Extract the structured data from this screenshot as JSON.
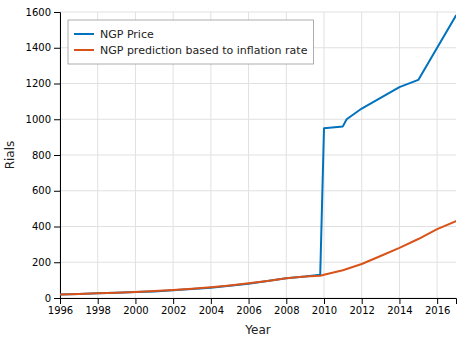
{
  "chart_data": {
    "type": "line",
    "xlabel": "Year",
    "ylabel": "Rials",
    "xlim": [
      1996,
      2017
    ],
    "ylim": [
      0,
      1600
    ],
    "xticks": [
      1996,
      1998,
      2000,
      2002,
      2004,
      2006,
      2008,
      2010,
      2012,
      2014,
      2016
    ],
    "yticks": [
      0,
      200,
      400,
      600,
      800,
      1000,
      1200,
      1400,
      1600
    ],
    "grid": true,
    "legend": "upper left",
    "series": [
      {
        "name": "NGP Price",
        "color": "#0072bd",
        "x": [
          1996,
          1997,
          1998,
          1999,
          2000,
          2001,
          2002,
          2003,
          2004,
          2005,
          2006,
          2007,
          2008,
          2009,
          2009.8,
          2010.0,
          2011.0,
          2011.2,
          2012,
          2013,
          2014,
          2015,
          2016,
          2017
        ],
        "values": [
          20,
          23,
          26,
          29,
          33,
          37,
          43,
          50,
          58,
          68,
          80,
          95,
          110,
          120,
          130,
          950,
          960,
          1000,
          1060,
          1120,
          1180,
          1220,
          1400,
          1580
        ]
      },
      {
        "name": "NGP prediction based to inflation rate",
        "color": "#d95319",
        "x": [
          1996,
          1997,
          1998,
          1999,
          2000,
          2001,
          2002,
          2003,
          2004,
          2005,
          2006,
          2007,
          2008,
          2009,
          2009.8,
          2010,
          2011,
          2012,
          2013,
          2014,
          2015,
          2016,
          2017
        ],
        "values": [
          20,
          23,
          26,
          30,
          34,
          39,
          45,
          52,
          60,
          70,
          82,
          95,
          110,
          120,
          125,
          130,
          155,
          190,
          235,
          280,
          330,
          385,
          430
        ]
      }
    ]
  }
}
